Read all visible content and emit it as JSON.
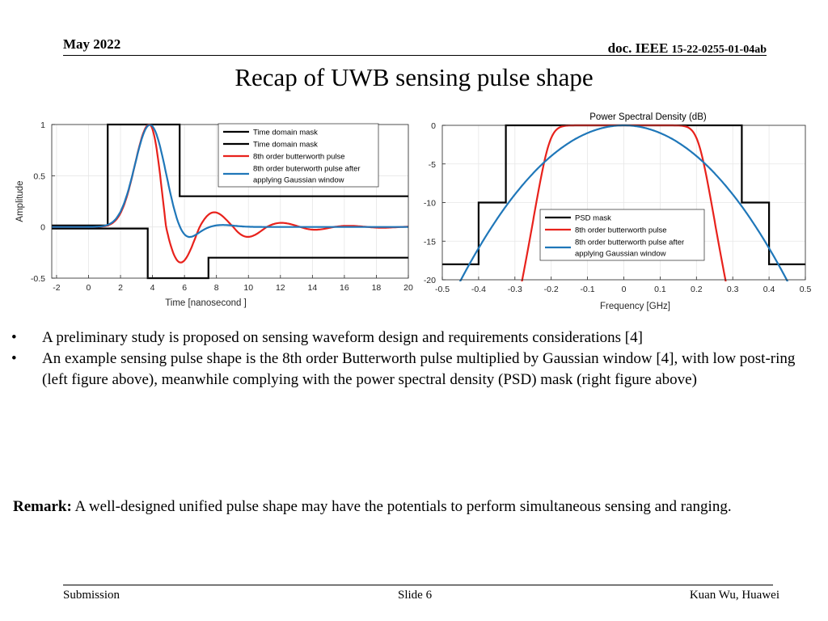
{
  "header": {
    "date": "May 2022",
    "doc_prefix": "doc. IEEE",
    "doc_number": "15-22-0255-01-04ab"
  },
  "title": "Recap of UWB sensing pulse shape",
  "bullets": [
    "A preliminary study is proposed on sensing waveform design and requirements considerations [4]",
    "An example sensing pulse shape is the 8th order Butterworth pulse multiplied by Gaussian window [4], with low post-ring (left figure above), meanwhile complying with the power spectral density (PSD) mask (right figure above)"
  ],
  "bullet_marker": "•",
  "remark": {
    "label": "Remark:",
    "text": " A well-designed unified pulse shape may have the potentials to perform simultaneous sensing and ranging."
  },
  "footer": {
    "left": "Submission",
    "center": "Slide 6",
    "right": "Kuan Wu, Huawei"
  },
  "colors": {
    "mask": "#000000",
    "butterworth": "#e8221c",
    "gaussian": "#1f77b9"
  },
  "chart_data": [
    {
      "type": "line",
      "title": "",
      "xlabel": "Time [nanosecond ]",
      "ylabel": "Amplitude",
      "xlim": [
        -2.3,
        20
      ],
      "ylim": [
        -0.5,
        1
      ],
      "xticks": [
        -2,
        0,
        2,
        4,
        6,
        8,
        10,
        12,
        14,
        16,
        18,
        20
      ],
      "yticks": [
        -0.5,
        0,
        0.5,
        1
      ],
      "grid": true,
      "legend": {
        "position": "top-right",
        "entries": [
          "Time domain mask",
          "Time domain mask",
          "8th order butterworth pulse",
          "8th order buterworth pulse after applying Gaussian window"
        ]
      },
      "series": [
        {
          "name": "Time domain mask",
          "color": "#000000",
          "points": [
            [
              -2.3,
              0.015
            ],
            [
              1.2,
              0.015
            ],
            [
              1.2,
              1
            ],
            [
              5.7,
              1
            ],
            [
              5.7,
              0.3
            ],
            [
              20,
              0.3
            ]
          ]
        },
        {
          "name": "Time domain mask",
          "color": "#000000",
          "points": [
            [
              -2.3,
              -0.015
            ],
            [
              3.7,
              -0.015
            ],
            [
              3.7,
              -0.5
            ],
            [
              7.5,
              -0.5
            ],
            [
              7.5,
              -0.3
            ],
            [
              20,
              -0.3
            ]
          ]
        },
        {
          "name": "8th order butterworth pulse",
          "color": "#e8221c",
          "model": {
            "kind": "damped_ringing",
            "t0": 3.8,
            "rise_sigma": 0.9,
            "period": 4.2,
            "decay": 3.3,
            "trough_amp": 0.34
          }
        },
        {
          "name": "8th order buterworth pulse after applying Gaussian window",
          "color": "#1f77b9",
          "model": {
            "kind": "gaussian_ringing",
            "t0": 3.85,
            "rise_sigma": 0.95,
            "trough_t": 5.95,
            "trough_amp": 0.15,
            "trough_sigma": 0.75,
            "tail_amp": 0.02,
            "tail_t": 8.3
          }
        }
      ]
    },
    {
      "type": "line",
      "title": "Power Spectral Density (dB)",
      "xlabel": "Frequency [GHz]",
      "ylabel": "",
      "xlim": [
        -0.5,
        0.5
      ],
      "ylim": [
        -20,
        0
      ],
      "xticks": [
        -0.5,
        -0.4,
        -0.3,
        -0.2,
        -0.1,
        0,
        0.1,
        0.2,
        0.3,
        0.4,
        0.5
      ],
      "yticks": [
        -20,
        -15,
        -10,
        -5,
        0
      ],
      "grid": true,
      "legend": {
        "position": "bottom-right",
        "entries": [
          "PSD mask",
          "8th order butterworth pulse",
          "8th order butterworth pulse after applying Gaussian window"
        ]
      },
      "series": [
        {
          "name": "PSD mask",
          "color": "#000000",
          "points": [
            [
              -0.5,
              -18
            ],
            [
              -0.4,
              -18
            ],
            [
              -0.4,
              -10
            ],
            [
              -0.325,
              -10
            ],
            [
              -0.325,
              0
            ],
            [
              0.325,
              0
            ],
            [
              0.325,
              -10
            ],
            [
              0.4,
              -10
            ],
            [
              0.4,
              -18
            ],
            [
              0.5,
              -18
            ]
          ]
        },
        {
          "name": "8th order butterworth pulse",
          "color": "#e8221c",
          "model": {
            "kind": "butterworth_psd",
            "cutoff": 0.21,
            "order": 8,
            "floor": -20
          }
        },
        {
          "name": "8th order butterworth pulse after applying Gaussian window",
          "color": "#1f77b9",
          "model": {
            "kind": "gaussian_psd",
            "bandwidth": 0.155,
            "floor": -20
          }
        }
      ]
    }
  ]
}
